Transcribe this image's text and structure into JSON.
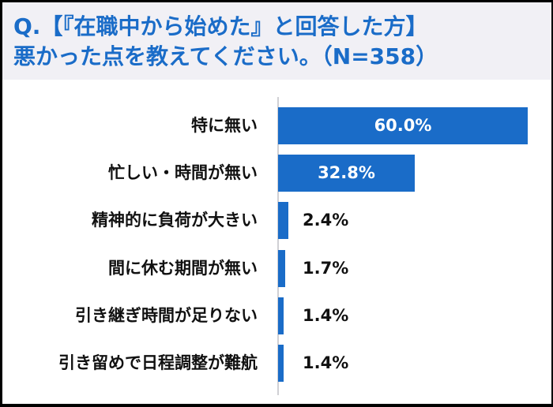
{
  "header": {
    "title_line1": "Q.【『在職中から始めた』と回答した方】",
    "title_line2": "悪かった点を教えてください。（N=358）"
  },
  "colors": {
    "bar": "#1a6cc8",
    "title": "#1a6cc8",
    "header_bg": "#f1f0f5"
  },
  "chart_data": {
    "type": "bar",
    "orientation": "horizontal",
    "title": "Q.【『在職中から始めた』と回答した方】悪かった点を教えてください。（N=358）",
    "categories": [
      "特に無い",
      "忙しい・時間が無い",
      "精神的に負荷が大きい",
      "間に休む期間が無い",
      "引き継ぎ時間が足りない",
      "引き留めで日程調整が難航"
    ],
    "values": [
      60.0,
      32.8,
      2.4,
      1.7,
      1.4,
      1.4
    ],
    "value_labels": [
      "60.0%",
      "32.8%",
      "2.4%",
      "1.7%",
      "1.4%",
      "1.4%"
    ],
    "unit": "%",
    "xlabel": "",
    "ylabel": "",
    "xlim": [
      0,
      60
    ],
    "grid": false,
    "legend": null,
    "n": 358
  }
}
